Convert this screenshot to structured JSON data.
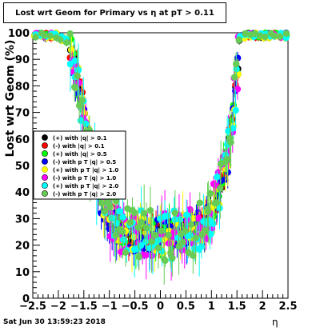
{
  "title": "Lost wrt Geom for Primary vs   η at pT > 0.11",
  "datestamp": "Sat Jun 30 13:59:23 2018",
  "chart_data": {
    "type": "scatter",
    "xlabel": "η",
    "ylabel": "Lost wrt Geom (%)",
    "xlim": [
      -2.5,
      2.5
    ],
    "ylim": [
      0,
      100
    ],
    "x_ticks": [
      "−2.5",
      "−2",
      "−1.5",
      "−1",
      "−0.5",
      "0",
      "0.5",
      "1",
      "1.5",
      "2",
      "2.5"
    ],
    "y_ticks": [
      "0",
      "10",
      "20",
      "30",
      "40",
      "50",
      "60",
      "70",
      "80",
      "90",
      "100"
    ],
    "legend_position": "middle-left",
    "series": [
      {
        "name": "(+) with |q| > 0.1",
        "color": "#000000",
        "marker": "circle"
      },
      {
        "name": "(-) with |q| > 0.1",
        "color": "#ff0000",
        "marker": "circle"
      },
      {
        "name": "(+) with |q| > 0.5",
        "color": "#00ff00",
        "marker": "circle"
      },
      {
        "name": "(-) with p T |q| > 0.5",
        "color": "#0000ff",
        "marker": "circle"
      },
      {
        "name": "(+) with p T |q| > 1.0",
        "color": "#ffff00",
        "marker": "circle"
      },
      {
        "name": "(-) with p T |q| > 1.0",
        "color": "#ff00ff",
        "marker": "circle"
      },
      {
        "name": "(+) with p T |q| > 2.0",
        "color": "#00ffff",
        "marker": "circle"
      },
      {
        "name": "(-) with p T |q| > 2.0",
        "color": "#66cc55",
        "marker": "circle"
      }
    ],
    "profile": {
      "x": [
        -2.45,
        -2.35,
        -2.25,
        -2.15,
        -2.05,
        -1.95,
        -1.85,
        -1.75,
        -1.7,
        -1.65,
        -1.6,
        -1.55,
        -1.5,
        -1.45,
        -1.4,
        -1.35,
        -1.3,
        -1.25,
        -1.2,
        -1.15,
        -1.1,
        -1.05,
        -1.0,
        -0.95,
        -0.9,
        -0.85,
        -0.8,
        -0.75,
        -0.7,
        -0.65,
        -0.6,
        -0.55,
        -0.5,
        -0.45,
        -0.4,
        -0.35,
        -0.3,
        -0.25,
        -0.2,
        -0.15,
        -0.1,
        -0.05,
        0.0,
        0.05,
        0.1,
        0.15,
        0.2,
        0.25,
        0.3,
        0.35,
        0.4,
        0.45,
        0.5,
        0.55,
        0.6,
        0.65,
        0.7,
        0.75,
        0.8,
        0.85,
        0.9,
        0.95,
        1.0,
        1.05,
        1.1,
        1.15,
        1.2,
        1.25,
        1.3,
        1.35,
        1.4,
        1.45,
        1.5,
        1.55,
        1.65,
        1.75,
        1.85,
        1.95,
        2.05,
        2.15,
        2.25,
        2.35,
        2.45
      ],
      "y": [
        99,
        99,
        99,
        99,
        99,
        98,
        97,
        93,
        89,
        85,
        80,
        75,
        70,
        66,
        61,
        56,
        51,
        46,
        42,
        38,
        35,
        33,
        31,
        29,
        28,
        27,
        26,
        25,
        25,
        24,
        24,
        24,
        23,
        23,
        23,
        24,
        24,
        24,
        24,
        24,
        24,
        24,
        24,
        24,
        24,
        24,
        24,
        24,
        24,
        24,
        25,
        25,
        25,
        26,
        26,
        26,
        27,
        27,
        28,
        28,
        29,
        30,
        32,
        35,
        37,
        40,
        44,
        48,
        53,
        60,
        68,
        77,
        87,
        98,
        99,
        99,
        99,
        99,
        99,
        99,
        99,
        99,
        99
      ]
    }
  }
}
